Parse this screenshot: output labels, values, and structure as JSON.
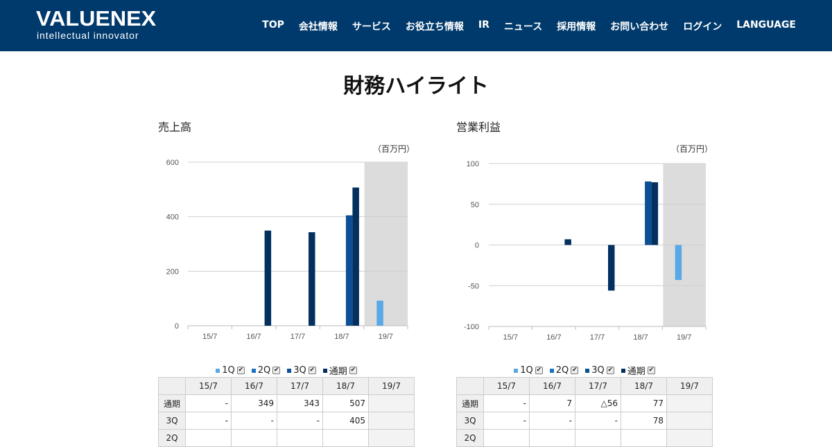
{
  "header": {
    "logo_main": "VALUENEX",
    "logo_sub": "intellectual innovator",
    "nav": [
      "TOP",
      "会社情報",
      "サービス",
      "お役立ち情報",
      "IR",
      "ニュース",
      "採用情報",
      "お問い合わせ",
      "ログイン",
      "LANGUAGE"
    ]
  },
  "page_title": "財務ハイライト",
  "colors": {
    "1Q": "#5aa8e6",
    "2Q": "#1f74c2",
    "3Q": "#0c4f94",
    "annual": "#04305f",
    "highlight": "#dcdcdc",
    "header_bg": "#003a6c"
  },
  "charts": [
    {
      "title": "売上高",
      "unit": "（百万円）",
      "legend": [
        {
          "key": "1Q",
          "label": "1Q",
          "checked": true
        },
        {
          "key": "2Q",
          "label": "2Q",
          "checked": true
        },
        {
          "key": "3Q",
          "label": "3Q",
          "checked": true
        },
        {
          "key": "annual",
          "label": "通期",
          "checked": true
        }
      ],
      "table": {
        "headers": [
          "",
          "15/7",
          "16/7",
          "17/7",
          "18/7",
          "19/7"
        ],
        "rows": [
          {
            "label": "通期",
            "values": [
              "-",
              "349",
              "343",
              "507",
              ""
            ]
          },
          {
            "label": "3Q",
            "values": [
              "-",
              "-",
              "-",
              "405",
              ""
            ]
          },
          {
            "label": "2Q",
            "values": [
              "",
              "",
              "",
              "",
              ""
            ]
          }
        ]
      }
    },
    {
      "title": "営業利益",
      "unit": "（百万円）",
      "legend": [
        {
          "key": "1Q",
          "label": "1Q",
          "checked": true
        },
        {
          "key": "2Q",
          "label": "2Q",
          "checked": true
        },
        {
          "key": "3Q",
          "label": "3Q",
          "checked": true
        },
        {
          "key": "annual",
          "label": "通期",
          "checked": true
        }
      ],
      "table": {
        "headers": [
          "",
          "15/7",
          "16/7",
          "17/7",
          "18/7",
          "19/7"
        ],
        "rows": [
          {
            "label": "通期",
            "values": [
              "-",
              "7",
              "△56",
              "77",
              ""
            ]
          },
          {
            "label": "3Q",
            "values": [
              "-",
              "-",
              "-",
              "78",
              ""
            ]
          },
          {
            "label": "2Q",
            "values": [
              "",
              "",
              "",
              "",
              ""
            ]
          }
        ]
      }
    }
  ],
  "chart_data": [
    {
      "type": "bar",
      "title": "売上高",
      "categories": [
        "15/7",
        "16/7",
        "17/7",
        "18/7",
        "19/7"
      ],
      "ylim": [
        0,
        600
      ],
      "yticks": [
        0,
        200,
        400,
        600
      ],
      "highlight_category": "19/7",
      "series": [
        {
          "name": "1Q",
          "values": [
            null,
            null,
            null,
            null,
            92
          ]
        },
        {
          "name": "2Q",
          "values": [
            null,
            null,
            null,
            null,
            null
          ]
        },
        {
          "name": "3Q",
          "values": [
            null,
            null,
            null,
            405,
            null
          ]
        },
        {
          "name": "通期",
          "values": [
            null,
            349,
            343,
            507,
            null
          ]
        }
      ]
    },
    {
      "type": "bar",
      "title": "営業利益",
      "categories": [
        "15/7",
        "16/7",
        "17/7",
        "18/7",
        "19/7"
      ],
      "ylim": [
        -100,
        100
      ],
      "yticks": [
        -100,
        -50,
        0,
        50,
        100
      ],
      "highlight_category": "19/7",
      "series": [
        {
          "name": "1Q",
          "values": [
            null,
            null,
            null,
            null,
            -43
          ]
        },
        {
          "name": "2Q",
          "values": [
            null,
            null,
            null,
            null,
            null
          ]
        },
        {
          "name": "3Q",
          "values": [
            null,
            null,
            null,
            78,
            null
          ]
        },
        {
          "name": "通期",
          "values": [
            null,
            7,
            -56,
            77,
            null
          ]
        }
      ]
    }
  ]
}
